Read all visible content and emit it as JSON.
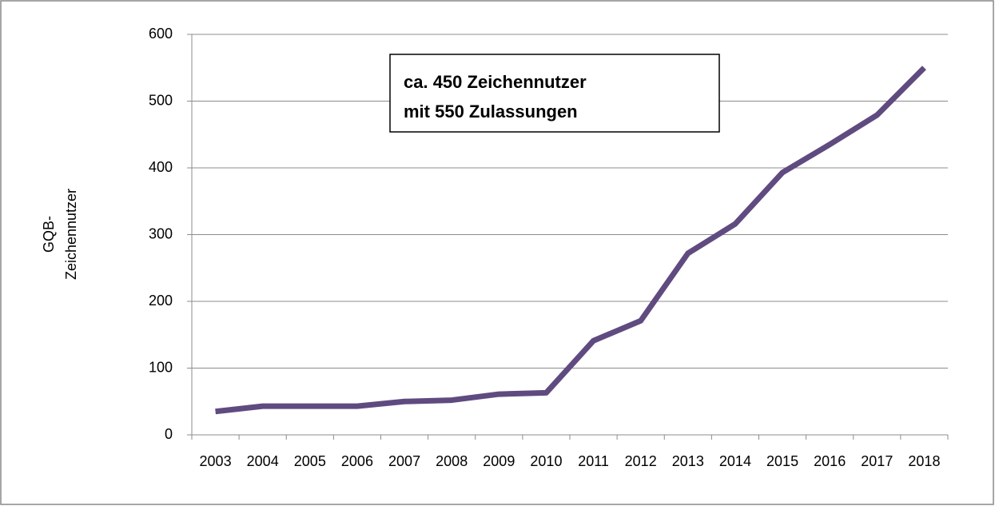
{
  "chart_data": {
    "type": "line",
    "y_label_lines": [
      "GQB-",
      "Zeichennutzer"
    ],
    "annotation_lines": [
      "ca. 450 Zeichennutzer",
      "mit 550 Zulassungen"
    ],
    "categories": [
      "2003",
      "2004",
      "2005",
      "2006",
      "2007",
      "2008",
      "2009",
      "2010",
      "2011",
      "2012",
      "2013",
      "2014",
      "2015",
      "2016",
      "2017",
      "2018"
    ],
    "values": [
      35,
      43,
      43,
      43,
      50,
      52,
      61,
      63,
      141,
      171,
      272,
      316,
      393,
      435,
      479,
      550
    ],
    "color": "#5f4b80",
    "ylim": [
      0,
      600
    ],
    "yticks": [
      0,
      100,
      200,
      300,
      400,
      500,
      600
    ],
    "grid": true
  }
}
